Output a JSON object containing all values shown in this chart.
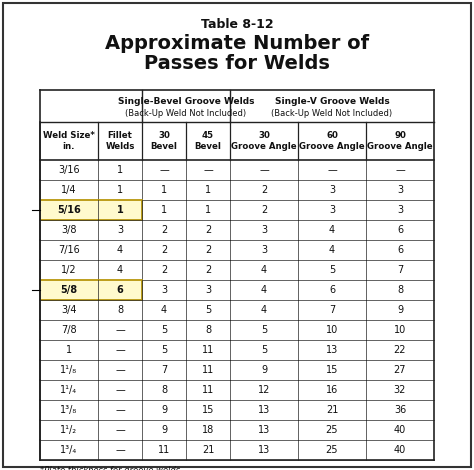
{
  "title_line1": "Table 8-12",
  "title_line2": "Approximate Number of",
  "title_line3": "Passes for Welds",
  "footnote": "*Plate thickness for groove welds.",
  "col_headers_sub": [
    "Weld Size*\nin.",
    "Fillet\nWelds",
    "30\nBevel",
    "45\nBevel",
    "30\nGroove Angle",
    "60\nGroove Angle",
    "90\nGroove Angle"
  ],
  "rows": [
    [
      "3/16",
      "1",
      "—",
      "—",
      "—",
      "—",
      "—"
    ],
    [
      "1/4",
      "1",
      "1",
      "1",
      "2",
      "3",
      "3"
    ],
    [
      "5/16",
      "1",
      "1",
      "1",
      "2",
      "3",
      "3"
    ],
    [
      "3/8",
      "3",
      "2",
      "2",
      "3",
      "4",
      "6"
    ],
    [
      "7/16",
      "4",
      "2",
      "2",
      "3",
      "4",
      "6"
    ],
    [
      "1/2",
      "4",
      "2",
      "2",
      "4",
      "5",
      "7"
    ],
    [
      "5/8",
      "6",
      "3",
      "3",
      "4",
      "6",
      "8"
    ],
    [
      "3/4",
      "8",
      "4",
      "5",
      "4",
      "7",
      "9"
    ],
    [
      "7/8",
      "—",
      "5",
      "8",
      "5",
      "10",
      "10"
    ],
    [
      "1",
      "—",
      "5",
      "11",
      "5",
      "13",
      "22"
    ],
    [
      "1¹/₈",
      "—",
      "7",
      "11",
      "9",
      "15",
      "27"
    ],
    [
      "1¹/₄",
      "—",
      "8",
      "11",
      "12",
      "16",
      "32"
    ],
    [
      "1³/₈",
      "—",
      "9",
      "15",
      "13",
      "21",
      "36"
    ],
    [
      "1¹/₂",
      "—",
      "9",
      "18",
      "13",
      "25",
      "40"
    ],
    [
      "1³/₄",
      "—",
      "11",
      "21",
      "13",
      "25",
      "40"
    ]
  ],
  "highlight_rows": [
    2,
    6
  ],
  "highlight_color": "#fffacd",
  "highlight_border": "#b8960c",
  "bg_color": "#ffffff",
  "border_color": "#222222",
  "text_color": "#111111"
}
